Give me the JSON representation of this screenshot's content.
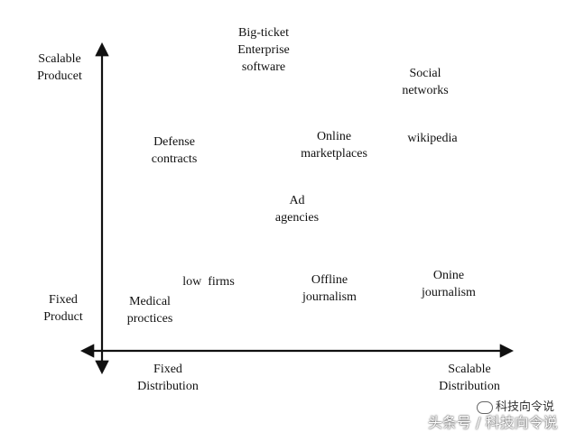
{
  "axes": {
    "y_top": "Scalable\nProducet",
    "y_bottom": "Fixed\nProduct",
    "x_left": "Fixed\nDistribution",
    "x_right": "Scalable\nDistribution"
  },
  "items": {
    "big_ticket": "Big-ticket\nEnterprise\nsoftware",
    "social_networks": "Social\nnetworks",
    "defense_contracts": "Defense\ncontracts",
    "online_marketplaces": "Online\nmarketplaces",
    "wikipedia": "wikipedia",
    "ad_agencies": "Ad\nagencies",
    "low_firms": "low  firms",
    "offline_journalism": "Offline\njournalism",
    "onine_journalism": "Onine\njournalism",
    "medical_practices": "Medical\nproctices"
  },
  "watermark": {
    "brand": "科技向令说",
    "source": "头条号 / 科技向令说"
  },
  "colors": {
    "axis": "#111111"
  }
}
